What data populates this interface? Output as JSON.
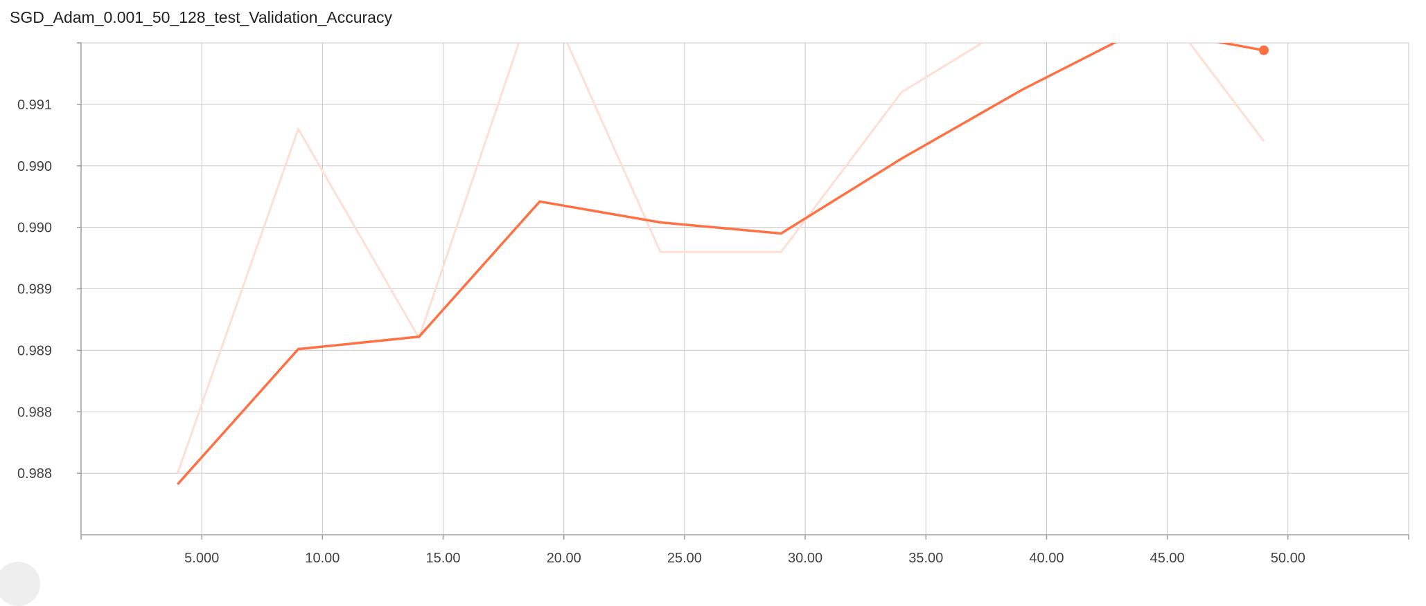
{
  "chart_data": {
    "type": "line",
    "title": "SGD_Adam_0.001_50_128_test_Validation_Accuracy",
    "xlabel": "",
    "ylabel": "",
    "xlim": [
      0,
      55
    ],
    "ylim": [
      0.98725,
      0.99125
    ],
    "x_ticks": [
      5,
      10,
      15,
      20,
      25,
      30,
      35,
      40,
      45,
      50
    ],
    "x_tick_labels": [
      "5.000",
      "10.00",
      "15.00",
      "20.00",
      "25.00",
      "30.00",
      "35.00",
      "40.00",
      "45.00",
      "50.00"
    ],
    "y_ticks": [
      0.98775,
      0.98825,
      0.98875,
      0.98925,
      0.98975,
      0.99025,
      0.99075,
      0.99125
    ],
    "y_tick_labels": [
      "0.988",
      "0.988",
      "0.989",
      "0.989",
      "0.990",
      "0.990",
      "0.991",
      ""
    ],
    "grid": true,
    "legend": "none",
    "series": [
      {
        "role": "raw",
        "color": "#ffdfd3",
        "x": [
          4,
          9,
          14,
          19,
          24,
          29,
          34,
          39,
          44,
          49
        ],
        "values": [
          0.98775,
          0.99055,
          0.98885,
          0.99175,
          0.98955,
          0.98955,
          0.99085,
          0.99145,
          0.99175,
          0.99045
        ]
      },
      {
        "role": "smoothed",
        "color": "#ff7043",
        "x": [
          4,
          9,
          14,
          19,
          24,
          29,
          34,
          39,
          44,
          49
        ],
        "values": [
          0.98766,
          0.98876,
          0.98886,
          0.98996,
          0.98979,
          0.9897,
          0.99031,
          0.99087,
          0.99137,
          0.99119
        ]
      }
    ]
  },
  "colors": {
    "raw_line": "#ffdfd3",
    "smoothed_line": "#ff7043",
    "grid": "#c8c8c8"
  },
  "icons": {
    "corner_button": "circle-button-icon"
  }
}
